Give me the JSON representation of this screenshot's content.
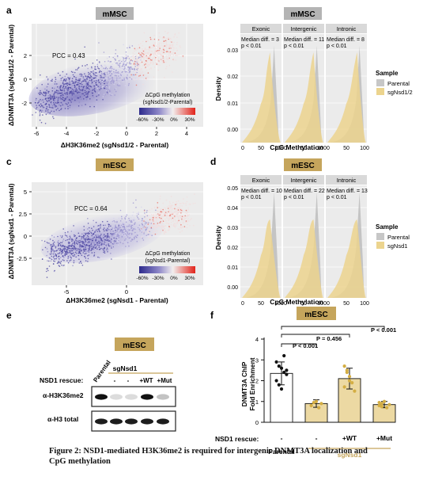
{
  "panels": {
    "a": {
      "letter": "a",
      "badge": "mMSC",
      "ylabel": "ΔDNMT3A (sgNsd1/2 - Parental)",
      "xlabel": "ΔH3K36me2 (sgNsd1/2 - Parental)",
      "pcc": "PCC = 0.43",
      "xticks": [
        "-6",
        "-4",
        "-2",
        "0",
        "2",
        "4"
      ],
      "yticks": [
        "2",
        "0",
        "-2"
      ],
      "legend_title": [
        "ΔCpG methylation",
        "(sgNsd1/2-Parental)"
      ],
      "legend_ticks": [
        "-60%",
        "-30%",
        "0%",
        "30%"
      ]
    },
    "b": {
      "letter": "b",
      "badge": "mMSC",
      "ylabel": "Density",
      "xlabel": "CpG Methylation",
      "facets": [
        "Exonic",
        "Intergenic",
        "Intronic"
      ],
      "annotations": [
        [
          "Median diff. = 3",
          "p < 0.01"
        ],
        [
          "Median diff. = 11",
          "p < 0.01"
        ],
        [
          "Median diff. = 8",
          "p < 0.01"
        ]
      ],
      "yticks": [
        "0.03",
        "0.02",
        "0.01",
        "0.00"
      ],
      "xticks": [
        "0",
        "50",
        "100"
      ],
      "legend_title": "Sample",
      "legend_items": [
        "Parental",
        "sgNsd1/2"
      ]
    },
    "c": {
      "letter": "c",
      "badge": "mESC",
      "ylabel": "ΔDNMT3A (sgNsd1 - Parental)",
      "xlabel": "ΔH3K36me2 (sgNsd1 - Parental)",
      "pcc": "PCC = 0.64",
      "xticks": [
        "-5",
        "0"
      ],
      "yticks": [
        "5",
        "2.5",
        "0",
        "-2.5"
      ],
      "legend_title": [
        "ΔCpG methylation",
        "(sgNsd1-Parental)"
      ],
      "legend_ticks": [
        "-60%",
        "-30%",
        "0%",
        "30%"
      ]
    },
    "d": {
      "letter": "d",
      "badge": "mESC",
      "ylabel": "Density",
      "xlabel": "CpG Methylation",
      "facets": [
        "Exonic",
        "Intergenic",
        "Intronic"
      ],
      "annotations": [
        [
          "Median diff. = 10",
          "p < 0.01"
        ],
        [
          "Median diff. = 22",
          "p < 0.01"
        ],
        [
          "Median diff. = 13",
          "p < 0.01"
        ]
      ],
      "yticks": [
        "0.05",
        "0.04",
        "0.03",
        "0.02",
        "0.01",
        "0.00"
      ],
      "xticks": [
        "0",
        "50",
        "100"
      ],
      "legend_title": "Sample",
      "legend_items": [
        "Parental",
        "sgNsd1"
      ]
    },
    "e": {
      "letter": "e",
      "badge": "mESC",
      "rescue_label": "NSD1 rescue:",
      "sgnsd1_label": "sgNsd1",
      "columns": [
        "Parental",
        "-",
        "-",
        "+WT",
        "+Mut"
      ],
      "rows": [
        "α-H3K36me2",
        "α-H3 total"
      ]
    },
    "f": {
      "letter": "f",
      "badge": "mESC",
      "ylabel": [
        "DNMT3A ChIP",
        "Fold Enrichment"
      ],
      "yticks": [
        "4",
        "3",
        "2",
        "1",
        "0"
      ],
      "rescue_label": "NSD1 rescue:",
      "categories": [
        "-",
        "-",
        "+WT",
        "+Mut"
      ],
      "group_labels": [
        "Parental",
        "sgNsd1"
      ],
      "pvalues": [
        "P < 0.001",
        "P = 0.456",
        "P < 0.001"
      ]
    }
  },
  "chart_data": {
    "type": "bar",
    "categories": [
      "Parental",
      "sgNsd1 -",
      "sgNsd1 +WT",
      "sgNsd1 +Mut"
    ],
    "values": [
      2.35,
      0.9,
      2.1,
      0.85
    ],
    "errors": [
      0.55,
      0.18,
      0.5,
      0.15
    ],
    "points": [
      [
        2.9,
        2.7,
        2.6,
        2.4,
        2.3,
        2.0,
        1.8,
        1.6,
        3.2,
        2.5
      ],
      [
        0.8,
        0.95,
        1.0,
        0.7,
        0.9
      ],
      [
        2.7,
        2.5,
        2.2,
        1.9,
        1.5,
        1.7,
        2.4,
        2.0
      ],
      [
        0.8,
        0.9,
        1.0,
        0.7,
        0.85,
        0.95,
        0.75
      ]
    ],
    "ylabel": "DNMT3A ChIP Fold Enrichment",
    "ylim": [
      0,
      4
    ],
    "colors": {
      "parental": "#ffffff",
      "sgnsd1": "#ecd9a3",
      "sgnsd1_dark": "#d4ae43"
    }
  },
  "caption": "Figure 2: NSD1-mediated H3K36me2 is required for intergenic DNMT3A localization and CpG methylation"
}
